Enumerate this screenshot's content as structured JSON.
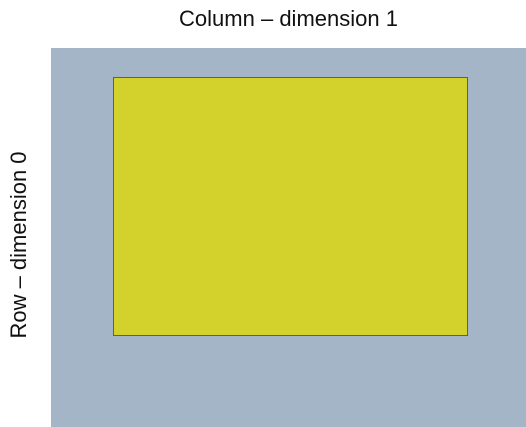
{
  "labels": {
    "column_axis": "Column – dimension 1",
    "row_axis": "Row – dimension 0"
  },
  "colors": {
    "array_background": "#a5b5c8",
    "slice_fill": "#d3d22c",
    "slice_border": "#4a6177",
    "text": "#111111"
  }
}
